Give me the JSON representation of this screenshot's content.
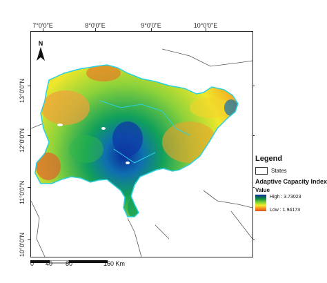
{
  "map": {
    "longitude_ticks": [
      "7°0'0\"E",
      "8°0'0\"E",
      "9°0'0\"E",
      "10°0'0\"E"
    ],
    "latitude_ticks": [
      "13°0'0\"N",
      "12°0'0\"N",
      "11°0'0\"N",
      "10°0'0\"N"
    ],
    "north_label": "N"
  },
  "legend": {
    "title": "Legend",
    "states_label": "States",
    "index_title": "Adaptive Capacity Index",
    "value_label": "Value",
    "high_label": "High : 3.73023",
    "low_label": "Low : 1.94173",
    "ramp_colors": [
      "#0b2a9c",
      "#0f8c3b",
      "#7cd13a",
      "#f1ee2a",
      "#f6941e",
      "#d9531e"
    ]
  },
  "scale": {
    "labels": [
      "0",
      "40",
      "80",
      "160 Km"
    ]
  }
}
